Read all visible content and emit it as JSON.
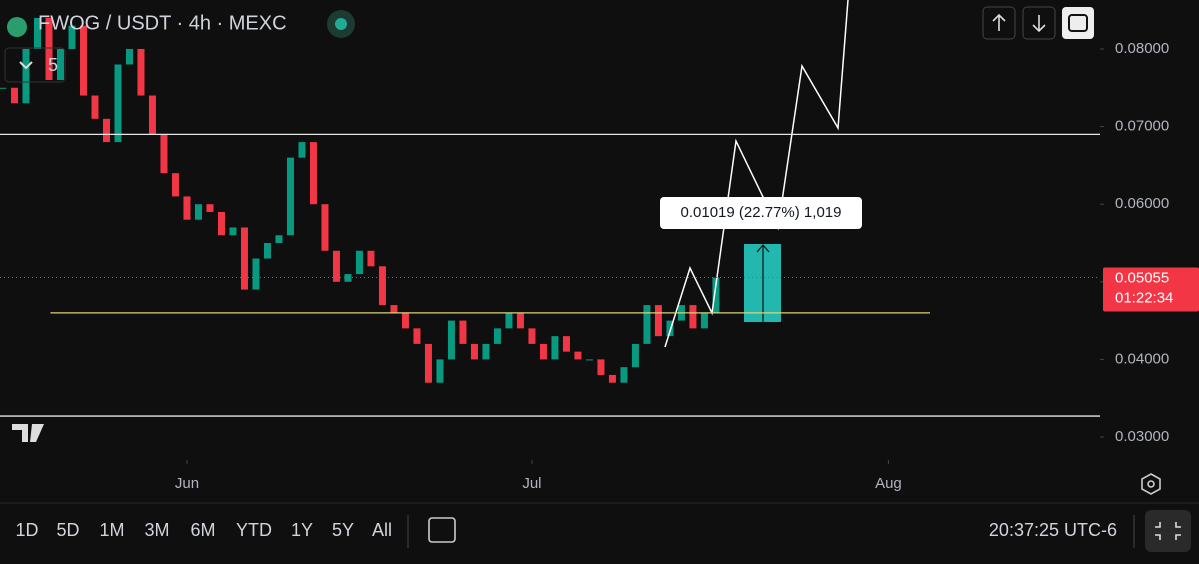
{
  "chart_data": {
    "type": "candlestick",
    "title": "FWOG / USDT · 4h · MEXC",
    "interval_count": 5,
    "x": [
      -16,
      -15,
      -14,
      -13,
      -12,
      -11,
      -10,
      -9,
      -8,
      -7,
      -6,
      -5,
      -4,
      -3,
      -2,
      -1,
      0,
      1,
      2,
      3,
      4,
      5,
      6,
      7,
      8,
      9,
      10,
      11,
      12,
      13,
      14,
      15,
      16,
      17,
      18,
      19,
      20,
      21,
      22,
      23,
      24,
      25,
      26,
      27,
      28,
      29,
      30,
      31,
      32,
      33,
      34,
      35,
      36,
      37,
      38,
      39,
      40,
      41,
      42,
      43,
      44,
      45,
      46
    ],
    "closes": [
      0.075,
      0.073,
      0.08,
      0.084,
      0.076,
      0.08,
      0.083,
      0.074,
      0.071,
      0.068,
      0.078,
      0.08,
      0.074,
      0.069,
      0.064,
      0.061,
      0.058,
      0.06,
      0.059,
      0.056,
      0.057,
      0.049,
      0.053,
      0.055,
      0.056,
      0.066,
      0.068,
      0.06,
      0.054,
      0.05,
      0.051,
      0.054,
      0.052,
      0.047,
      0.046,
      0.044,
      0.042,
      0.037,
      0.04,
      0.045,
      0.042,
      0.04,
      0.042,
      0.044,
      0.046,
      0.044,
      0.042,
      0.04,
      0.043,
      0.041,
      0.04,
      0.04,
      0.038,
      0.037,
      0.039,
      0.042,
      0.047,
      0.043,
      0.045,
      0.047,
      0.044,
      0.046,
      0.05055
    ],
    "up_color": "#089981",
    "down_color": "#f23645",
    "xlim": [
      -16.26,
      79.4
    ],
    "xticks": [
      {
        "value": 0,
        "label": "Jun"
      },
      {
        "value": 30,
        "label": "Jul"
      },
      {
        "value": 61,
        "label": "Aug"
      }
    ],
    "ylim": [
      0.02704,
      0.08631
    ],
    "yticks": [
      {
        "value": 0.03,
        "label": "0.03000"
      },
      {
        "value": 0.04,
        "label": "0.04000"
      },
      {
        "value": 0.05,
        "label": "0.05000"
      },
      {
        "value": 0.06,
        "label": "0.06000"
      },
      {
        "value": 0.07,
        "label": "0.07000"
      },
      {
        "value": 0.08,
        "label": "0.08000"
      }
    ],
    "levels": [
      0.069,
      0.0327
    ],
    "support": 0.046,
    "last_price": {
      "value": 0.05055,
      "label": "0.05055"
    },
    "countdown": "01:22:34",
    "measure_label": "0.01019 (22.77%) 1,019",
    "ranges": [
      "1D",
      "5D",
      "1M",
      "3M",
      "6M",
      "YTD",
      "1Y",
      "5Y",
      "All"
    ],
    "clock": "20:37:25 UTC-6"
  }
}
